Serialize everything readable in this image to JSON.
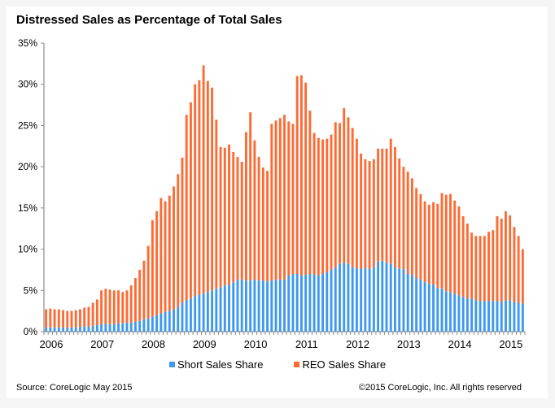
{
  "chart_data": {
    "type": "bar",
    "stacked": true,
    "title": "Distressed Sales as Percentage of Total Sales",
    "xlabel": "",
    "ylabel": "",
    "ylim": [
      0,
      35
    ],
    "yticks": [
      "0%",
      "5%",
      "10%",
      "15%",
      "20%",
      "25%",
      "30%",
      "35%"
    ],
    "ytick_values": [
      0,
      5,
      10,
      15,
      20,
      25,
      30,
      35
    ],
    "xtick_labels": [
      "2006",
      "2007",
      "2008",
      "2009",
      "2010",
      "2011",
      "2012",
      "2013",
      "2014",
      "2015"
    ],
    "x_start": "Jan 2006",
    "x_end": "May 2015",
    "frequency": "monthly",
    "grid": false,
    "legend_position": "bottom",
    "colors": {
      "short": "#3d98f0",
      "reo": "#ff6a33"
    },
    "series": [
      {
        "name": "Short Sales Share",
        "values": [
          0.5,
          0.5,
          0.5,
          0.5,
          0.5,
          0.5,
          0.5,
          0.5,
          0.6,
          0.6,
          0.6,
          0.7,
          0.8,
          0.9,
          0.9,
          0.9,
          0.9,
          1.0,
          1.0,
          1.1,
          1.1,
          1.2,
          1.3,
          1.5,
          1.6,
          1.8,
          2.0,
          2.2,
          2.4,
          2.5,
          2.7,
          3.0,
          3.5,
          3.8,
          4.0,
          4.3,
          4.5,
          4.6,
          4.8,
          5.0,
          5.2,
          5.4,
          5.6,
          5.7,
          6.0,
          6.3,
          6.3,
          6.2,
          6.2,
          6.3,
          6.2,
          6.2,
          6.1,
          6.2,
          6.3,
          6.3,
          6.3,
          6.8,
          7.0,
          7.0,
          6.8,
          6.9,
          7.0,
          6.9,
          6.8,
          7.0,
          7.2,
          7.5,
          7.8,
          8.2,
          8.4,
          8.2,
          7.8,
          7.7,
          7.6,
          7.7,
          7.6,
          7.8,
          8.5,
          8.6,
          8.4,
          8.2,
          7.8,
          7.6,
          7.6,
          7.0,
          6.9,
          6.5,
          6.3,
          6.0,
          5.8,
          5.7,
          5.3,
          5.2,
          4.9,
          4.8,
          4.6,
          4.4,
          4.2,
          4.0,
          4.0,
          3.8,
          3.7,
          3.7,
          3.7,
          3.7,
          3.7,
          3.6,
          3.8,
          3.8,
          3.6,
          3.5,
          3.4
        ]
      },
      {
        "name": "REO Sales Share",
        "values": [
          2.2,
          2.3,
          2.2,
          2.2,
          2.1,
          2.0,
          2.0,
          2.1,
          2.1,
          2.3,
          2.4,
          2.8,
          3.1,
          4.1,
          4.3,
          4.2,
          4.1,
          4.0,
          3.8,
          3.9,
          4.5,
          5.3,
          6.2,
          7.1,
          8.8,
          11.7,
          12.6,
          14.0,
          13.4,
          14.0,
          14.9,
          16.1,
          17.6,
          22.5,
          23.8,
          25.7,
          26.0,
          27.7,
          25.6,
          24.6,
          20.5,
          17.0,
          16.7,
          17.0,
          15.8,
          14.9,
          14.3,
          18.0,
          20.4,
          16.9,
          15.0,
          13.7,
          13.4,
          19.0,
          19.3,
          19.6,
          20.0,
          18.7,
          18.2,
          24.0,
          24.3,
          23.3,
          19.8,
          17.2,
          16.7,
          16.3,
          16.2,
          16.4,
          17.6,
          17.1,
          18.7,
          17.8,
          16.9,
          15.7,
          14.0,
          13.2,
          13.1,
          13.1,
          13.7,
          13.6,
          13.8,
          15.2,
          14.6,
          13.4,
          12.4,
          12.4,
          11.7,
          10.9,
          10.4,
          9.8,
          9.6,
          10.0,
          10.2,
          11.6,
          11.7,
          11.9,
          11.3,
          10.8,
          9.8,
          9.1,
          8.0,
          7.8,
          7.9,
          7.9,
          8.4,
          8.6,
          10.3,
          10.1,
          10.8,
          10.3,
          9.1,
          8.1,
          6.6
        ]
      }
    ]
  },
  "legend": {
    "short_label": "Short Sales Share",
    "reo_label": "REO Sales Share"
  },
  "footer": {
    "source": "Source: CoreLogic May 2015",
    "copyright": "©2015 CoreLogic, Inc. All rights reserved"
  }
}
